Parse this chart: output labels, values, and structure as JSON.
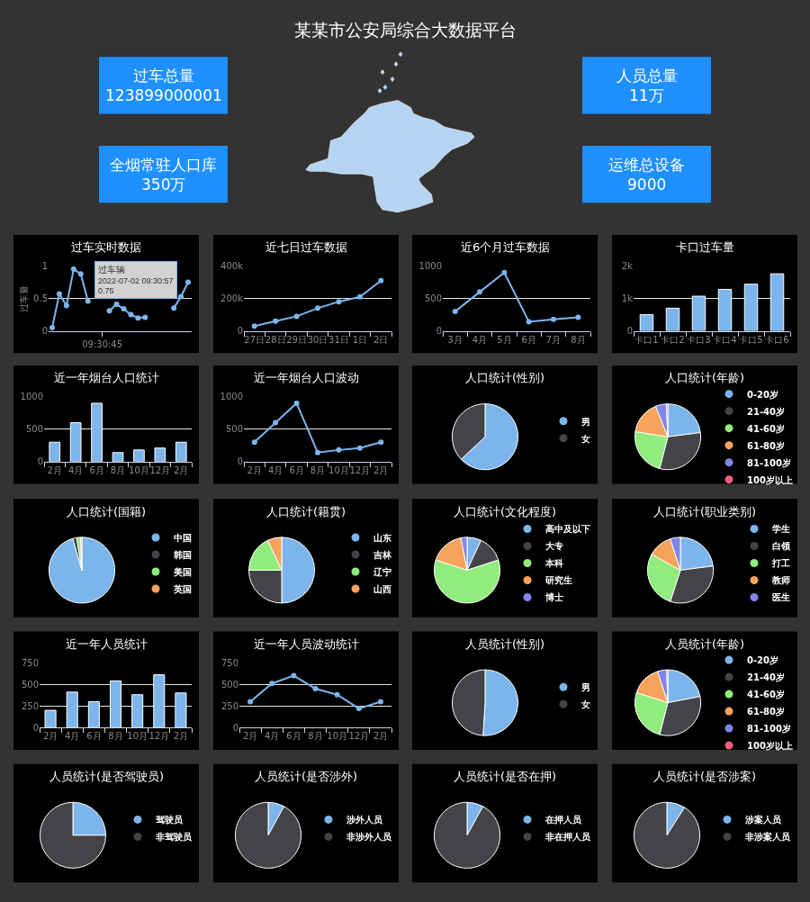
{
  "chart_data": [
    {
      "type": "other",
      "title": "某某市公安局综合大数据平台",
      "color": "#1e90ff",
      "annotations": [
        "过车总量",
        "123899000001",
        "人员总量",
        "11万",
        "全烟常驻人口库",
        "350万",
        "运维总设备",
        "9000"
      ]
    },
    {
      "type": "line",
      "title": "过车实时数据",
      "ylabel": "过车量",
      "categories": [
        null,
        null,
        null,
        null,
        null,
        null,
        null,
        "09:30:45",
        null,
        null,
        null,
        null,
        null,
        null,
        null,
        null,
        null,
        null,
        null,
        null
      ],
      "values": [
        0.05,
        0.57,
        0.39,
        0.95,
        0.88,
        0.46,
        null,
        null,
        0.31,
        0.41,
        0.34,
        0.25,
        0.2,
        0.21,
        null,
        null,
        null,
        0.35,
        0.53,
        0.75
      ],
      "color": "#7cb5ec",
      "ylim": [
        0,
        1
      ],
      "yticks": [
        0,
        0.5,
        1
      ],
      "grid": "y",
      "marker": "circle",
      "annotations": [
        "过车辆\n2022-07-02 09:30:57\n0.75"
      ]
    },
    {
      "type": "line",
      "title": "近七日过车数据",
      "categories": [
        "27日",
        "28日",
        "29日",
        "30日",
        "31日",
        "1日",
        "2日"
      ],
      "values": [
        30000,
        60000,
        90000,
        140000,
        180000,
        210000,
        310000
      ],
      "color": "#7cb5ec",
      "ylim": [
        0,
        400000
      ],
      "yticks": [
        0,
        {
          "value": 200000,
          "label": "200k"
        },
        {
          "value": 400000,
          "label": "400k"
        }
      ],
      "grid": "y",
      "marker": "circle"
    },
    {
      "type": "line",
      "title": "近6个月过车数据",
      "categories": [
        "3月",
        "4月",
        "5月",
        "6月",
        "7月",
        "8月"
      ],
      "values": [
        300,
        600,
        900,
        140,
        180,
        210
      ],
      "color": "#7cb5ec",
      "ylim": [
        0,
        1000
      ],
      "yticks": [
        0,
        500,
        1000
      ],
      "grid": "y",
      "marker": "circle"
    },
    {
      "type": "bar",
      "title": "卡口过车量",
      "categories": [
        "卡口1",
        "卡口2",
        "卡口3",
        "卡口4",
        "卡口5",
        "卡口6"
      ],
      "values": [
        500,
        700,
        1070,
        1280,
        1440,
        1760
      ],
      "color": "#7cb5ec",
      "ylim": [
        0,
        2000
      ],
      "yticks": [
        0,
        {
          "value": 1000,
          "label": "1k"
        },
        {
          "value": 2000,
          "label": "2k"
        }
      ],
      "grid": "y"
    },
    {
      "type": "bar",
      "title": "近一年烟台人口统计",
      "categories": [
        "2月",
        "4月",
        "6月",
        "8月",
        "10月",
        "12月",
        "2月"
      ],
      "values": [
        300,
        600,
        900,
        140,
        180,
        210,
        300
      ],
      "color": "#7cb5ec",
      "ylim": [
        0,
        1000
      ],
      "yticks": [
        0,
        500,
        1000
      ],
      "grid": "y"
    },
    {
      "type": "line",
      "title": "近一年烟台人口波动",
      "categories": [
        "2月",
        "4月",
        "6月",
        "8月",
        "10月",
        "12月",
        "2月"
      ],
      "values": [
        300,
        600,
        900,
        140,
        180,
        210,
        300
      ],
      "color": "#7cb5ec",
      "ylim": [
        0,
        1000
      ],
      "yticks": [
        0,
        500,
        1000
      ],
      "grid": "y",
      "marker": "circle"
    },
    {
      "type": "pie",
      "title": "人口统计(性别)",
      "categories": [
        "男",
        "女"
      ],
      "values": [
        63,
        37
      ],
      "colors": [
        "#7cb5ec",
        "#434348"
      ],
      "legend": "right"
    },
    {
      "type": "pie",
      "title": "人口统计(年龄)",
      "categories": [
        "0-20岁",
        "21-40岁",
        "41-60岁",
        "61-80岁",
        "81-100岁",
        "100岁以上"
      ],
      "values": [
        23,
        31,
        23.5,
        16.5,
        5.3,
        0.7
      ],
      "colors": [
        "#7cb5ec",
        "#434348",
        "#90ed7d",
        "#f7a35c",
        "#8085e9",
        "#f15c80"
      ],
      "legend": "right"
    },
    {
      "type": "pie",
      "title": "人口统计(国籍)",
      "categories": [
        "中国",
        "韩国",
        "美国",
        "英国"
      ],
      "values": [
        95.5,
        2,
        1.8,
        0.7
      ],
      "colors": [
        "#7cb5ec",
        "#434348",
        "#90ed7d",
        "#f7a35c"
      ],
      "legend": "right"
    },
    {
      "type": "pie",
      "title": "人口统计(籍贯)",
      "categories": [
        "山东",
        "吉林",
        "辽宁",
        "山西"
      ],
      "values": [
        50,
        25,
        18,
        7
      ],
      "colors": [
        "#7cb5ec",
        "#434348",
        "#90ed7d",
        "#f7a35c"
      ],
      "legend": "right"
    },
    {
      "type": "pie",
      "title": "人口统计(文化程度)",
      "categories": [
        "高中及以下",
        "大专",
        "本科",
        "研究生",
        "博士"
      ],
      "values": [
        7,
        13,
        60,
        17,
        3
      ],
      "colors": [
        "#7cb5ec",
        "#434348",
        "#90ed7d",
        "#f7a35c",
        "#8085e9"
      ],
      "legend": "right"
    },
    {
      "type": "pie",
      "title": "人口统计(职业类别)",
      "categories": [
        "学生",
        "白领",
        "打工",
        "教师",
        "医生"
      ],
      "values": [
        23,
        32,
        28,
        12,
        5
      ],
      "colors": [
        "#7cb5ec",
        "#434348",
        "#90ed7d",
        "#f7a35c",
        "#8085e9"
      ],
      "legend": "right"
    },
    {
      "type": "bar",
      "title": "近一年人员统计",
      "categories": [
        "2月",
        "4月",
        "6月",
        "8月",
        "10月",
        "12月",
        "2月"
      ],
      "values": [
        200,
        410,
        300,
        540,
        380,
        610,
        400
      ],
      "color": "#7cb5ec",
      "ylim": [
        0,
        750
      ],
      "yticks": [
        0,
        250,
        500,
        750
      ],
      "grid": "y"
    },
    {
      "type": "line",
      "title": "近一年人员波动统计",
      "categories": [
        "2月",
        "4月",
        "6月",
        "8月",
        "10月",
        "12月",
        "2月"
      ],
      "values": [
        300,
        510,
        600,
        450,
        380,
        220,
        300
      ],
      "color": "#7cb5ec",
      "ylim": [
        0,
        750
      ],
      "yticks": [
        0,
        250,
        500,
        750
      ],
      "grid": "y",
      "marker": "circle"
    },
    {
      "type": "pie",
      "title": "人员统计(性别)",
      "categories": [
        "男",
        "女"
      ],
      "values": [
        51,
        49
      ],
      "colors": [
        "#7cb5ec",
        "#434348"
      ],
      "legend": "right"
    },
    {
      "type": "pie",
      "title": "人员统计(年龄)",
      "categories": [
        "0-20岁",
        "21-40岁",
        "41-60岁",
        "61-80岁",
        "81-100岁",
        "100岁以上"
      ],
      "values": [
        22,
        32,
        26,
        15,
        4.5,
        0.5
      ],
      "colors": [
        "#7cb5ec",
        "#434348",
        "#90ed7d",
        "#f7a35c",
        "#8085e9",
        "#f15c80"
      ],
      "legend": "right"
    },
    {
      "type": "pie",
      "title": "人员统计(是否驾驶员)",
      "categories": [
        "驾驶员",
        "非驾驶员"
      ],
      "values": [
        25,
        75
      ],
      "colors": [
        "#7cb5ec",
        "#434348"
      ],
      "legend": "right"
    },
    {
      "type": "pie",
      "title": "人员统计(是否涉外)",
      "categories": [
        "涉外人员",
        "非涉外人员"
      ],
      "values": [
        8,
        92
      ],
      "colors": [
        "#7cb5ec",
        "#434348"
      ],
      "legend": "right"
    },
    {
      "type": "pie",
      "title": "人员统计(是否在押)",
      "categories": [
        "在押人员",
        "非在押人员"
      ],
      "values": [
        8,
        92
      ],
      "colors": [
        "#7cb5ec",
        "#434348"
      ],
      "legend": "right"
    },
    {
      "type": "pie",
      "title": "人员统计(是否涉案)",
      "categories": [
        "涉案人员",
        "非涉案人员"
      ],
      "values": [
        9,
        91
      ],
      "colors": [
        "#7cb5ec",
        "#434348"
      ],
      "legend": "right"
    }
  ]
}
